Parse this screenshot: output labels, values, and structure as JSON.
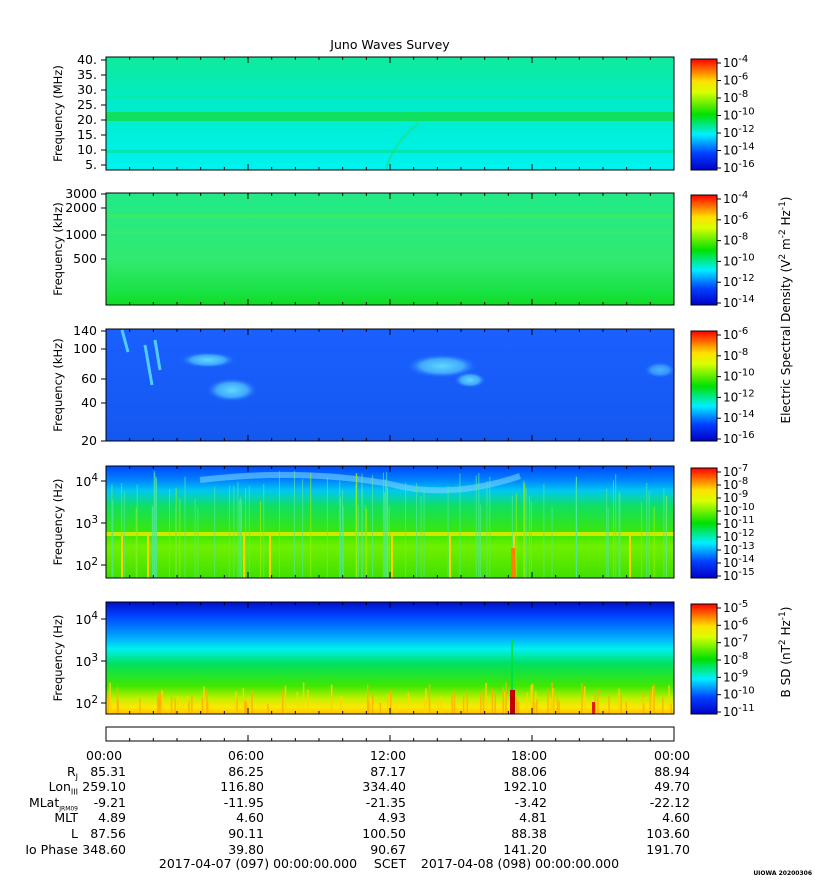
{
  "title": "Juno Waves Survey",
  "panels": [
    {
      "name": "hfwbr",
      "ylabel": "Frequency (MHz)",
      "yticks": [
        "40.",
        "35.",
        "30.",
        "25.",
        "20.",
        "15.",
        "10.",
        "5."
      ],
      "cbar_ticks": [
        [
          "10",
          "-4"
        ],
        [
          "10",
          "-6"
        ],
        [
          "10",
          "-8"
        ],
        [
          "10",
          "-10"
        ],
        [
          "10",
          "-12"
        ],
        [
          "10",
          "-14"
        ],
        [
          "10",
          "-16"
        ]
      ]
    },
    {
      "name": "hf",
      "ylabel": "Frequency (kHz)",
      "yticks": [
        "3000",
        "2000",
        "1000",
        "500"
      ],
      "cbar_ticks": [
        [
          "10",
          "-4"
        ],
        [
          "10",
          "-6"
        ],
        [
          "10",
          "-8"
        ],
        [
          "10",
          "-10"
        ],
        [
          "10",
          "-12"
        ],
        [
          "10",
          "-14"
        ]
      ]
    },
    {
      "name": "lfr-hi",
      "ylabel": "Frequency (kHz)",
      "yticks": [
        "140",
        "100",
        "60",
        "40",
        "20"
      ],
      "cbar_ticks": [
        [
          "10",
          "-6"
        ],
        [
          "10",
          "-8"
        ],
        [
          "10",
          "-10"
        ],
        [
          "10",
          "-12"
        ],
        [
          "10",
          "-14"
        ],
        [
          "10",
          "-16"
        ]
      ]
    },
    {
      "name": "lfr-lo",
      "ylabel": "Frequency (Hz)",
      "yticks": [
        [
          "10",
          "4"
        ],
        [
          "10",
          "3"
        ],
        [
          "10",
          "2"
        ]
      ],
      "cbar_ticks": [
        [
          "10",
          "-7"
        ],
        [
          "10",
          "-8"
        ],
        [
          "10",
          "-9"
        ],
        [
          "10",
          "-10"
        ],
        [
          "10",
          "-11"
        ],
        [
          "10",
          "-12"
        ],
        [
          "10",
          "-13"
        ],
        [
          "10",
          "-14"
        ],
        [
          "10",
          "-15"
        ]
      ]
    },
    {
      "name": "mag",
      "ylabel": "Frequency (Hz)",
      "yticks": [
        [
          "10",
          "4"
        ],
        [
          "10",
          "3"
        ],
        [
          "10",
          "2"
        ]
      ],
      "cbar_ticks": [
        [
          "10",
          "-5"
        ],
        [
          "10",
          "-6"
        ],
        [
          "10",
          "-7"
        ],
        [
          "10",
          "-8"
        ],
        [
          "10",
          "-9"
        ],
        [
          "10",
          "-10"
        ],
        [
          "10",
          "-11"
        ]
      ]
    }
  ],
  "cbar_labels": {
    "electric": {
      "text": "Electric Spectral Density (V",
      "sup1": "2",
      "mid": " m",
      "sup2": "-2",
      "mid2": " Hz",
      "sup3": "-1",
      "end": ")"
    },
    "magnetic": {
      "text": "B SD (nT",
      "sup1": "2",
      "mid": " Hz",
      "sup2": "-1",
      "end": ")"
    }
  },
  "ephemeris": {
    "times": [
      "00:00",
      "06:00",
      "12:00",
      "18:00",
      "00:00"
    ],
    "rows": [
      {
        "label": "R",
        "sub": "J",
        "values": [
          "85.31",
          "86.25",
          "87.17",
          "88.06",
          "88.94"
        ]
      },
      {
        "label": "Lon",
        "sub": "III",
        "values": [
          "259.10",
          "116.80",
          "334.40",
          "192.10",
          "49.70"
        ]
      },
      {
        "label": "MLat",
        "sub": "JRM09",
        "values": [
          "-9.21",
          "-11.95",
          "-21.35",
          "-3.42",
          "-22.12"
        ]
      },
      {
        "label": "MLT",
        "sub": "",
        "values": [
          "4.89",
          "4.60",
          "4.93",
          "4.81",
          "4.60"
        ]
      },
      {
        "label": "L",
        "sub": "",
        "values": [
          "87.56",
          "90.11",
          "100.50",
          "88.38",
          "103.60"
        ]
      },
      {
        "label": "Io Phase",
        "sub": "",
        "values": [
          "348.60",
          "39.80",
          "90.67",
          "141.20",
          "191.70"
        ]
      }
    ],
    "footer_start": "2017-04-07 (097) 00:00:00.000",
    "footer_mid": "SCET",
    "footer_end": "2017-04-08 (098) 00:00:00.000"
  },
  "stamp": "UIOWA 20200306",
  "chart_data": {
    "type": "heatmap",
    "title": "Juno Waves Survey",
    "time_range": [
      "2017-04-07 (097) 00:00:00.000",
      "2017-04-08 (098) 00:00:00.000"
    ],
    "x_ticks": [
      "00:00",
      "06:00",
      "12:00",
      "18:00",
      "00:00"
    ],
    "colors": {
      "low": "#0000d0",
      "mid_low": "#00e8ff",
      "mid": "#00e000",
      "mid_high": "#ffff00",
      "high": "#ff0000"
    },
    "panels": [
      {
        "ylabel": "Frequency (MHz)",
        "ylim": [
          3,
          42
        ],
        "yscale": "linear",
        "cbar_range": [
          -16,
          -4
        ],
        "cbar_scale": "log10",
        "quantity": "Electric Spectral Density",
        "dominant_log_level": -13,
        "band_features": [
          {
            "freq": 21,
            "log_level": -11.5
          },
          {
            "freq": 8.5,
            "log_level": -12.3
          }
        ]
      },
      {
        "ylabel": "Frequency (kHz)",
        "ylim": [
          150,
          3000
        ],
        "yscale": "log",
        "cbar_range": [
          -15,
          -3
        ],
        "cbar_scale": "log10",
        "quantity": "Electric Spectral Density",
        "dominant_log_level": -11.5,
        "band_features": [
          {
            "freq": 1700,
            "log_level": -11
          },
          {
            "freq": 1200,
            "log_level": -11.2
          }
        ]
      },
      {
        "ylabel": "Frequency (kHz)",
        "ylim": [
          20,
          140
        ],
        "yscale": "log",
        "cbar_range": [
          -16,
          -6
        ],
        "cbar_scale": "log10",
        "quantity": "Electric Spectral Density",
        "dominant_log_level": -14.5,
        "emission_patches": [
          {
            "t_hours": [
              2.5,
              6.0
            ],
            "freq_range": [
              40,
              90
            ],
            "log_level": -13.2
          },
          {
            "t_hours": [
              14.5,
              16.5
            ],
            "freq_range": [
              55,
              85
            ],
            "log_level": -13.0
          },
          {
            "t_hours": [
              1.0,
              2.5
            ],
            "freq_range": [
              55,
              130
            ],
            "log_level": -13.3
          }
        ]
      },
      {
        "ylabel": "Frequency (Hz)",
        "ylim": [
          50,
          20000
        ],
        "yscale": "log",
        "cbar_range": [
          -15,
          -7
        ],
        "cbar_scale": "log10",
        "quantity": "Electric Spectral Density",
        "dominant_log_level": -11,
        "band_features": [
          {
            "freq": 550,
            "log_level": -10
          }
        ],
        "spikes_t_hours": [
          17.1
        ]
      },
      {
        "ylabel": "Frequency (Hz)",
        "ylim": [
          50,
          20000
        ],
        "yscale": "log",
        "cbar_range": [
          -11,
          -4
        ],
        "cbar_scale": "log10",
        "quantity": "B SD",
        "gradient": [
          {
            "freq": 15000,
            "log_level": -10.8
          },
          {
            "freq": 3000,
            "log_level": -9.5
          },
          {
            "freq": 800,
            "log_level": -8.5
          },
          {
            "freq": 200,
            "log_level": -7.5
          },
          {
            "freq": 60,
            "log_level": -6.5
          }
        ],
        "spikes_t_hours": [
          17.1,
          20.4
        ]
      }
    ]
  }
}
